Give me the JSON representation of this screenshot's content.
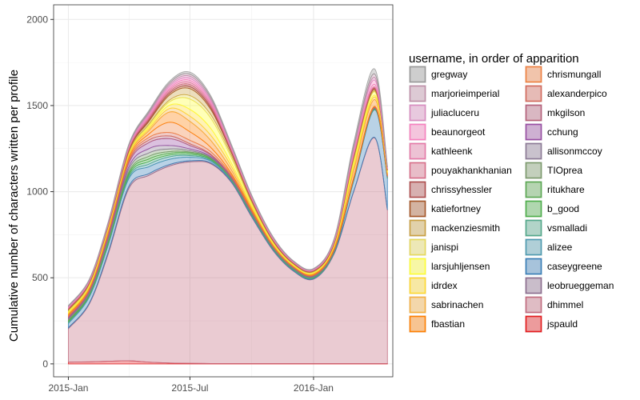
{
  "chart_data": {
    "type": "area",
    "stacked": true,
    "ylabel": "Cumulative number of characters written per profile",
    "xlabel": "",
    "x_ticks": [
      "2015-Jan",
      "2015-Jul",
      "2016-Jan"
    ],
    "x_tick_dates": [
      "2015-01-01",
      "2015-07-01",
      "2016-01-01"
    ],
    "x_range": [
      "2014-12-10",
      "2016-04-28"
    ],
    "y_ticks": [
      0,
      500,
      1000,
      1500,
      2000
    ],
    "ylim": [
      -75,
      2085
    ],
    "grid": true,
    "legend": {
      "title": "username, in order of apparition",
      "placement": "right",
      "columns": 2
    },
    "x": [
      "2015-01-01",
      "2015-02-01",
      "2015-03-01",
      "2015-04-01",
      "2015-05-01",
      "2015-06-01",
      "2015-07-01",
      "2015-08-01",
      "2015-09-01",
      "2015-10-01",
      "2015-11-01",
      "2015-12-01",
      "2016-01-01",
      "2016-02-01",
      "2016-03-01",
      "2016-04-01",
      "2016-04-20"
    ],
    "series": [
      {
        "name": "jspauld",
        "color": "#e41a1c",
        "values": [
          10,
          12,
          15,
          18,
          10,
          5,
          3,
          2,
          2,
          2,
          2,
          2,
          2,
          2,
          2,
          2,
          2
        ]
      },
      {
        "name": "dhimmel",
        "color": "#c26b7f",
        "values": [
          195,
          335,
          620,
          1000,
          1085,
          1145,
          1170,
          1160,
          1050,
          850,
          660,
          540,
          490,
          640,
          1000,
          1310,
          890
        ]
      },
      {
        "name": "leobrueggeman",
        "color": "#8c6d8f",
        "values": [
          5,
          5,
          10,
          12,
          10,
          8,
          6,
          5,
          4,
          4,
          3,
          2,
          2,
          3,
          3,
          3,
          3
        ]
      },
      {
        "name": "caseygreene",
        "color": "#377eb8",
        "values": [
          25,
          35,
          40,
          45,
          40,
          30,
          20,
          10,
          6,
          6,
          5,
          4,
          4,
          6,
          60,
          160,
          180
        ]
      },
      {
        "name": "alizee",
        "color": "#4d9ab0",
        "values": [
          5,
          5,
          5,
          10,
          15,
          15,
          10,
          5,
          3,
          3,
          2,
          2,
          2,
          2,
          2,
          2,
          2
        ]
      },
      {
        "name": "vsmalladi",
        "color": "#52a88a",
        "values": [
          5,
          5,
          8,
          10,
          15,
          10,
          8,
          5,
          3,
          3,
          2,
          2,
          2,
          2,
          2,
          2,
          2
        ]
      },
      {
        "name": "b_good",
        "color": "#4daf4a",
        "values": [
          5,
          5,
          8,
          10,
          15,
          10,
          8,
          5,
          3,
          3,
          2,
          2,
          2,
          2,
          2,
          2,
          2
        ]
      },
      {
        "name": "ritukhare",
        "color": "#5aa851",
        "values": [
          5,
          5,
          8,
          10,
          15,
          10,
          5,
          3,
          2,
          2,
          2,
          2,
          2,
          2,
          2,
          2,
          2
        ]
      },
      {
        "name": "TIOprea",
        "color": "#7c9a6c",
        "values": [
          5,
          5,
          8,
          15,
          20,
          15,
          8,
          4,
          3,
          3,
          2,
          2,
          2,
          2,
          2,
          2,
          2
        ]
      },
      {
        "name": "allisonmccoy",
        "color": "#8c7a96",
        "values": [
          5,
          5,
          8,
          15,
          25,
          20,
          10,
          5,
          3,
          3,
          2,
          2,
          2,
          2,
          2,
          2,
          2
        ]
      },
      {
        "name": "cchung",
        "color": "#984ea3",
        "values": [
          5,
          5,
          10,
          20,
          35,
          40,
          20,
          8,
          4,
          3,
          2,
          2,
          2,
          2,
          2,
          2,
          2
        ]
      },
      {
        "name": "mkgilson",
        "color": "#b5607a",
        "values": [
          5,
          5,
          8,
          10,
          15,
          15,
          10,
          5,
          3,
          3,
          2,
          2,
          2,
          2,
          2,
          2,
          2
        ]
      },
      {
        "name": "alexanderpico",
        "color": "#d46a5c",
        "values": [
          5,
          5,
          8,
          10,
          15,
          20,
          20,
          15,
          8,
          4,
          3,
          2,
          2,
          2,
          2,
          2,
          2
        ]
      },
      {
        "name": "chrismungall",
        "color": "#f08040",
        "values": [
          5,
          5,
          8,
          10,
          20,
          60,
          50,
          25,
          10,
          5,
          3,
          2,
          2,
          2,
          2,
          2,
          2
        ]
      },
      {
        "name": "fbastian",
        "color": "#ff7f00",
        "values": [
          5,
          5,
          8,
          10,
          20,
          60,
          60,
          40,
          20,
          8,
          4,
          3,
          5,
          10,
          40,
          40,
          10
        ]
      },
      {
        "name": "sabrinachen",
        "color": "#f5b041",
        "values": [
          5,
          5,
          5,
          8,
          10,
          20,
          30,
          30,
          20,
          10,
          5,
          3,
          3,
          5,
          20,
          15,
          5
        ]
      },
      {
        "name": "idrdex",
        "color": "#ffd92f",
        "values": [
          5,
          5,
          5,
          5,
          10,
          20,
          40,
          40,
          20,
          10,
          5,
          3,
          3,
          5,
          20,
          10,
          5
        ]
      },
      {
        "name": "larsjuhljensen",
        "color": "#ffff33",
        "values": [
          5,
          5,
          5,
          5,
          10,
          20,
          60,
          60,
          30,
          10,
          5,
          3,
          3,
          5,
          20,
          20,
          5
        ]
      },
      {
        "name": "janispi",
        "color": "#e6d95c",
        "values": [
          5,
          5,
          5,
          5,
          8,
          10,
          20,
          20,
          15,
          8,
          4,
          3,
          3,
          4,
          8,
          5,
          3
        ]
      },
      {
        "name": "mackenziesmith",
        "color": "#c9a042",
        "values": [
          5,
          5,
          5,
          8,
          15,
          30,
          40,
          30,
          15,
          8,
          4,
          3,
          3,
          4,
          10,
          8,
          3
        ]
      },
      {
        "name": "katiefortney",
        "color": "#a65628",
        "values": [
          3,
          3,
          3,
          5,
          8,
          10,
          12,
          10,
          6,
          4,
          3,
          2,
          2,
          3,
          5,
          5,
          2
        ]
      },
      {
        "name": "chrissyhessler",
        "color": "#b04e4e",
        "values": [
          3,
          3,
          3,
          5,
          8,
          10,
          12,
          10,
          6,
          4,
          3,
          2,
          2,
          3,
          5,
          5,
          2
        ]
      },
      {
        "name": "pouyakhankhanian",
        "color": "#d96f8a",
        "values": [
          3,
          3,
          3,
          5,
          8,
          10,
          12,
          10,
          6,
          4,
          3,
          2,
          2,
          3,
          5,
          5,
          2
        ]
      },
      {
        "name": "kathleenk",
        "color": "#e67aa8",
        "values": [
          3,
          3,
          3,
          5,
          8,
          10,
          12,
          10,
          6,
          4,
          3,
          2,
          2,
          4,
          10,
          15,
          3
        ]
      },
      {
        "name": "beaunorgeot",
        "color": "#f781bf",
        "values": [
          3,
          3,
          3,
          5,
          8,
          10,
          12,
          10,
          6,
          4,
          3,
          2,
          2,
          4,
          15,
          25,
          3
        ]
      },
      {
        "name": "juliacluceru",
        "color": "#d98cc0",
        "values": [
          3,
          3,
          3,
          5,
          8,
          10,
          12,
          10,
          6,
          4,
          3,
          2,
          2,
          4,
          10,
          15,
          3
        ]
      },
      {
        "name": "marjorieimperial",
        "color": "#bf8fa8",
        "values": [
          3,
          3,
          3,
          5,
          8,
          10,
          12,
          10,
          6,
          4,
          3,
          2,
          2,
          4,
          15,
          20,
          3
        ]
      },
      {
        "name": "gregway",
        "color": "#999999",
        "values": [
          3,
          3,
          3,
          5,
          8,
          10,
          12,
          10,
          6,
          4,
          3,
          2,
          2,
          4,
          20,
          30,
          3
        ]
      }
    ],
    "legend_order": [
      "gregway",
      "marjorieimperial",
      "juliacluceru",
      "beaunorgeot",
      "kathleenk",
      "pouyakhankhanian",
      "chrissyhessler",
      "katiefortney",
      "mackenziesmith",
      "janispi",
      "larsjuhljensen",
      "idrdex",
      "sabrinachen",
      "fbastian",
      "chrismungall",
      "alexanderpico",
      "mkgilson",
      "cchung",
      "allisonmccoy",
      "TIOprea",
      "ritukhare",
      "b_good",
      "vsmalladi",
      "alizee",
      "caseygreene",
      "leobrueggeman",
      "dhimmel",
      "jspauld"
    ]
  }
}
